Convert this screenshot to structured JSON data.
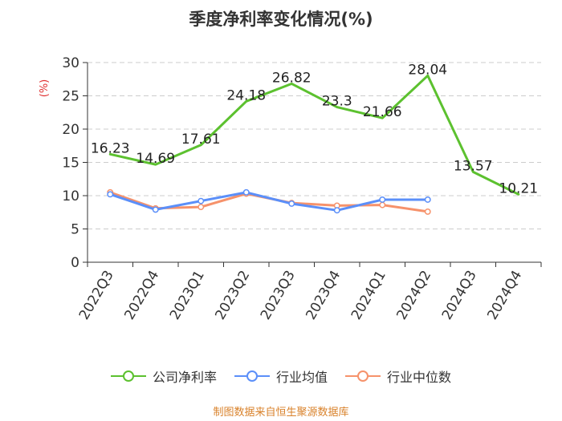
{
  "chart_data": {
    "type": "line",
    "title": "季度净利率变化情况(%)",
    "ylabel": "(%)",
    "xlabel": "",
    "ylim": [
      0,
      30
    ],
    "yticks": [
      0,
      5,
      10,
      15,
      20,
      25,
      30
    ],
    "grid": true,
    "legend_position": "bottom",
    "categories": [
      "2022Q3",
      "2022Q4",
      "2023Q1",
      "2023Q2",
      "2023Q3",
      "2023Q4",
      "2024Q1",
      "2024Q2",
      "2024Q3",
      "2024Q4"
    ],
    "series": [
      {
        "name": "公司净利率",
        "color": "#5cc12f",
        "show_labels": true,
        "values": [
          16.23,
          14.69,
          17.61,
          24.18,
          26.82,
          23.3,
          21.66,
          28.04,
          13.57,
          10.21
        ]
      },
      {
        "name": "行业均值",
        "color": "#5b8ff9",
        "show_labels": false,
        "values": [
          10.2,
          7.9,
          9.2,
          10.5,
          8.8,
          7.8,
          9.4,
          9.4,
          null,
          null
        ]
      },
      {
        "name": "行业中位数",
        "color": "#f6926b",
        "show_labels": false,
        "values": [
          10.5,
          8.1,
          8.3,
          10.3,
          8.9,
          8.5,
          8.6,
          7.6,
          null,
          null
        ]
      }
    ]
  },
  "source_note": "制图数据来自恒生聚源数据库",
  "colors": {
    "title": "#333333",
    "axis": "#333333",
    "grid": "#cccccc",
    "ylabel": "#e03030",
    "source": "#d9822b"
  }
}
